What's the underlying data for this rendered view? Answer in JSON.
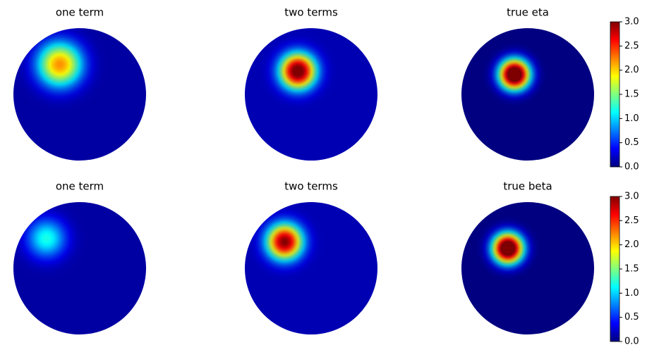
{
  "chart_data": [
    {
      "type": "heatmap",
      "title": "one term",
      "peak": 2.2,
      "center": [
        -0.3,
        0.45
      ],
      "width": 0.25,
      "background": 0.1
    },
    {
      "type": "heatmap",
      "title": "two terms",
      "peak": 3.2,
      "center": [
        -0.2,
        0.35
      ],
      "width": 0.2,
      "background": 0.15
    },
    {
      "type": "heatmap",
      "title": "true eta",
      "peak": 3.6,
      "center": [
        -0.2,
        0.3
      ],
      "width": 0.17,
      "background": 0.0,
      "colorbar": {
        "ylim": [
          0,
          3
        ],
        "yticks": [
          {
            "value": 0,
            "label": "0.0"
          },
          {
            "value": 0.5,
            "label": "0.5"
          },
          {
            "value": 1,
            "label": "1.0"
          },
          {
            "value": 1.5,
            "label": "1.5"
          },
          {
            "value": 2,
            "label": "2.0"
          },
          {
            "value": 2.5,
            "label": "2.5"
          },
          {
            "value": 3,
            "label": "3.0"
          }
        ]
      }
    },
    {
      "type": "heatmap",
      "title": "one term",
      "peak": 1.2,
      "center": [
        -0.5,
        0.45
      ],
      "width": 0.22,
      "background": 0.1
    },
    {
      "type": "heatmap",
      "title": "two terms",
      "peak": 3.0,
      "center": [
        -0.4,
        0.4
      ],
      "width": 0.2,
      "background": 0.15
    },
    {
      "type": "heatmap",
      "title": "true beta",
      "peak": 3.6,
      "center": [
        -0.3,
        0.3
      ],
      "width": 0.17,
      "background": 0.0,
      "colorbar": {
        "ylim": [
          0,
          3
        ],
        "yticks": [
          {
            "value": 0,
            "label": "0.0"
          },
          {
            "value": 0.5,
            "label": "0.5"
          },
          {
            "value": 1,
            "label": "1.0"
          },
          {
            "value": 1.5,
            "label": "1.5"
          },
          {
            "value": 2,
            "label": "2.0"
          },
          {
            "value": 2.5,
            "label": "2.5"
          },
          {
            "value": 3,
            "label": "3.0"
          }
        ]
      }
    }
  ]
}
